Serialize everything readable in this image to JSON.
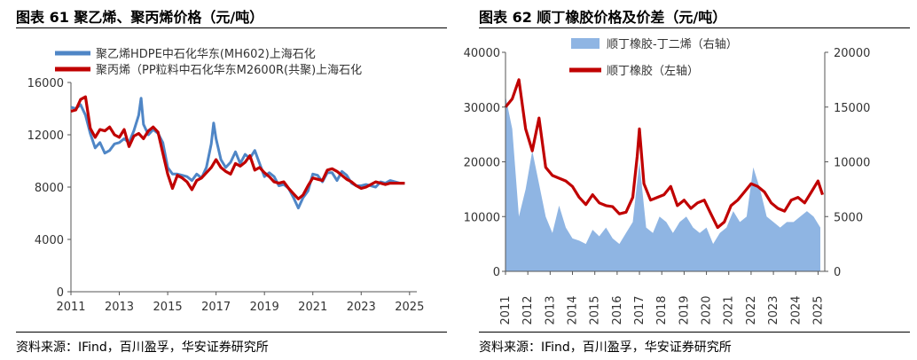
{
  "left": {
    "title": "图表 61 聚乙烯、聚丙烯价格（元/吨）",
    "source": "资料来源：IFind，百川盈孚，华安证券研究所"
  },
  "right": {
    "title": "图表 62 顺丁橡胶价格及价差（元/吨）",
    "source": "资料来源：IFind，百川盈孚，华安证券研究所"
  },
  "colors": {
    "blue": "#4f86c6",
    "red": "#c00000",
    "lightblue": "#8fb5e3",
    "axis": "#555555"
  },
  "chart_data": [
    {
      "type": "line",
      "ylim": [
        0,
        16000
      ],
      "xlim": [
        2011,
        2025.3
      ],
      "yticks": [
        "0",
        "4000",
        "8000",
        "12000",
        "16000"
      ],
      "xticks": [
        "2011",
        "2013",
        "2015",
        "2017",
        "2019",
        "2021",
        "2023",
        "2025"
      ],
      "legend_position": "top",
      "series": [
        {
          "name": "聚乙烯HDPE中石化华东(MH602)上海石化",
          "color": "#4f86c6",
          "x": [
            2011.0,
            2011.2,
            2011.4,
            2011.6,
            2011.8,
            2012.0,
            2012.2,
            2012.4,
            2012.6,
            2012.8,
            2013.0,
            2013.2,
            2013.4,
            2013.6,
            2013.8,
            2013.9,
            2014.0,
            2014.2,
            2014.4,
            2014.6,
            2014.8,
            2015.0,
            2015.2,
            2015.4,
            2015.6,
            2015.8,
            2016.0,
            2016.2,
            2016.4,
            2016.6,
            2016.8,
            2016.9,
            2017.0,
            2017.2,
            2017.4,
            2017.6,
            2017.8,
            2018.0,
            2018.2,
            2018.4,
            2018.6,
            2018.8,
            2019.0,
            2019.2,
            2019.4,
            2019.6,
            2019.8,
            2020.0,
            2020.2,
            2020.4,
            2020.6,
            2020.8,
            2021.0,
            2021.2,
            2021.4,
            2021.6,
            2021.8,
            2022.0,
            2022.2,
            2022.4,
            2022.6,
            2022.8,
            2023.0,
            2023.2,
            2023.4,
            2023.6,
            2023.8,
            2024.0,
            2024.2,
            2024.4,
            2024.6,
            2024.8
          ],
          "y": [
            14100,
            14000,
            14300,
            13500,
            12100,
            11000,
            11400,
            10600,
            10800,
            11300,
            11400,
            11700,
            11400,
            12300,
            13500,
            14800,
            12800,
            12000,
            12400,
            12100,
            11400,
            9500,
            9000,
            9000,
            8900,
            8800,
            8500,
            9000,
            8700,
            9500,
            11300,
            12900,
            11700,
            10100,
            9500,
            9900,
            10700,
            9800,
            10500,
            10200,
            10800,
            9800,
            8800,
            9100,
            8800,
            8100,
            8200,
            7900,
            7200,
            6400,
            7200,
            7700,
            9000,
            8900,
            8400,
            9100,
            9100,
            8500,
            9200,
            8900,
            8300,
            8100,
            8100,
            8200,
            8100,
            8000,
            8400,
            8300,
            8500,
            8400,
            8300,
            8300
          ]
        },
        {
          "name": "聚丙烯（PP粒料中石化华东M2600R(共聚)上海石化",
          "color": "#c00000",
          "x": [
            2011.0,
            2011.2,
            2011.4,
            2011.6,
            2011.8,
            2012.0,
            2012.2,
            2012.4,
            2012.6,
            2012.8,
            2013.0,
            2013.2,
            2013.4,
            2013.6,
            2013.8,
            2014.0,
            2014.2,
            2014.4,
            2014.6,
            2014.8,
            2015.0,
            2015.2,
            2015.4,
            2015.6,
            2015.8,
            2016.0,
            2016.2,
            2016.4,
            2016.6,
            2016.8,
            2017.0,
            2017.2,
            2017.4,
            2017.6,
            2017.8,
            2018.0,
            2018.2,
            2018.4,
            2018.6,
            2018.8,
            2019.0,
            2019.2,
            2019.4,
            2019.6,
            2019.8,
            2020.0,
            2020.2,
            2020.4,
            2020.6,
            2020.8,
            2021.0,
            2021.2,
            2021.4,
            2021.6,
            2021.8,
            2022.0,
            2022.2,
            2022.4,
            2022.6,
            2022.8,
            2023.0,
            2023.2,
            2023.4,
            2023.6,
            2023.8,
            2024.0,
            2024.2,
            2024.4,
            2024.6,
            2024.8
          ],
          "y": [
            13800,
            13900,
            14700,
            14900,
            12500,
            11800,
            12400,
            12300,
            12600,
            12000,
            11800,
            12400,
            11100,
            11900,
            12100,
            11700,
            12300,
            12600,
            12200,
            10600,
            9000,
            7900,
            8900,
            8700,
            8400,
            7800,
            8500,
            8700,
            9100,
            9500,
            10100,
            9500,
            9200,
            9000,
            9800,
            9600,
            9900,
            10400,
            9300,
            9500,
            9100,
            8800,
            8400,
            8300,
            8400,
            7900,
            7500,
            7100,
            7400,
            8100,
            8700,
            8600,
            8500,
            9300,
            9400,
            9200,
            8900,
            8600,
            8400,
            8100,
            7900,
            8000,
            8200,
            8400,
            8300,
            8200,
            8300,
            8300,
            8300,
            8300
          ]
        }
      ]
    },
    {
      "type": "line+area",
      "ylim_left": [
        0,
        40000
      ],
      "ylim_right": [
        0,
        20000
      ],
      "xlim": [
        2011,
        2025.3
      ],
      "yticks_left": [
        "0",
        "10000",
        "20000",
        "30000",
        "40000"
      ],
      "yticks_right": [
        "0",
        "5000",
        "10000",
        "15000",
        "20000"
      ],
      "xticks": [
        "2011",
        "2012",
        "2013",
        "2014",
        "2015",
        "2016",
        "2017",
        "2018",
        "2019",
        "2020",
        "2021",
        "2022",
        "2023",
        "2024",
        "2025"
      ],
      "legend_position": "top-left",
      "series": [
        {
          "name": "顺丁橡胶-丁二烯（右轴）",
          "kind": "area",
          "axis": "right",
          "color": "#8fb5e3",
          "x": [
            2011.0,
            2011.3,
            2011.6,
            2011.9,
            2012.2,
            2012.5,
            2012.8,
            2013.1,
            2013.4,
            2013.7,
            2014.0,
            2014.3,
            2014.6,
            2014.9,
            2015.2,
            2015.5,
            2015.8,
            2016.1,
            2016.4,
            2016.7,
            2017.0,
            2017.3,
            2017.6,
            2017.9,
            2018.2,
            2018.5,
            2018.8,
            2019.1,
            2019.4,
            2019.7,
            2020.0,
            2020.3,
            2020.6,
            2020.9,
            2021.2,
            2021.5,
            2021.8,
            2022.1,
            2022.4,
            2022.7,
            2023.0,
            2023.3,
            2023.6,
            2023.9,
            2024.2,
            2024.5,
            2024.8,
            2025.1
          ],
          "y": [
            16000,
            13000,
            5000,
            7500,
            11000,
            8000,
            5000,
            3500,
            6000,
            4000,
            3000,
            2800,
            2500,
            3800,
            3200,
            4000,
            3000,
            2500,
            3500,
            4500,
            10000,
            4000,
            3500,
            5000,
            4500,
            3500,
            4500,
            5000,
            4000,
            3500,
            4000,
            2500,
            3500,
            4000,
            5500,
            4500,
            5000,
            9500,
            7500,
            5000,
            4500,
            4000,
            4500,
            4500,
            5000,
            5500,
            5000,
            4000
          ]
        },
        {
          "name": "顺丁橡胶（左轴）",
          "kind": "line",
          "axis": "left",
          "color": "#c00000",
          "x": [
            2011.0,
            2011.3,
            2011.6,
            2011.9,
            2012.2,
            2012.5,
            2012.8,
            2013.1,
            2013.4,
            2013.7,
            2014.0,
            2014.3,
            2014.6,
            2014.9,
            2015.2,
            2015.5,
            2015.8,
            2016.1,
            2016.4,
            2016.7,
            2016.9,
            2017.0,
            2017.2,
            2017.5,
            2017.8,
            2018.1,
            2018.4,
            2018.7,
            2019.0,
            2019.3,
            2019.6,
            2019.9,
            2020.2,
            2020.5,
            2020.8,
            2021.1,
            2021.4,
            2021.7,
            2022.0,
            2022.3,
            2022.6,
            2022.9,
            2023.2,
            2023.5,
            2023.8,
            2024.1,
            2024.4,
            2024.7,
            2025.0,
            2025.2
          ],
          "y": [
            30000,
            31500,
            35000,
            26000,
            22000,
            28000,
            19000,
            17500,
            17000,
            16500,
            15500,
            13500,
            12200,
            14000,
            12500,
            12000,
            11800,
            10500,
            10800,
            13500,
            21000,
            26000,
            16000,
            13000,
            13500,
            14000,
            15500,
            12000,
            13000,
            11500,
            12500,
            13000,
            10500,
            8000,
            9000,
            12000,
            13000,
            14500,
            16000,
            15500,
            14500,
            12500,
            11500,
            11000,
            13000,
            13500,
            12500,
            14500,
            16500,
            14000
          ]
        }
      ]
    }
  ]
}
